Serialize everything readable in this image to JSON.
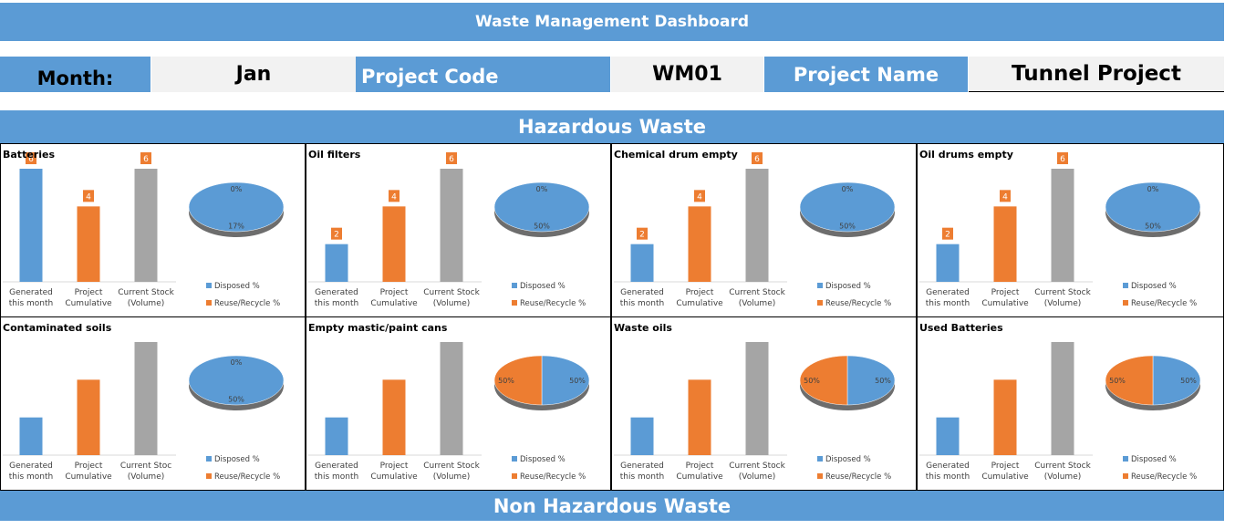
{
  "header": {
    "title": "Waste Management Dashboard",
    "month_label": "Month:",
    "month": "Jan",
    "project_code_label": "Project Code",
    "project_code": "WM01",
    "project_name_label": "Project Name",
    "project_name": "Tunnel Project"
  },
  "sections": [
    "Hazardous Waste",
    "Non Hazardous Waste"
  ],
  "chart_data": [
    {
      "type": "bar",
      "title": "Batteries",
      "categories": [
        "Generated this month",
        "Project Cumulative",
        "Current Stock (Volume)"
      ],
      "values": [
        6,
        4,
        6
      ],
      "colors": [
        "#5b9bd5",
        "#ed7d31",
        "#a5a5a5"
      ],
      "show_value_labels": true
    },
    {
      "type": "pie",
      "categories": [
        "Disposed %",
        "Reuse/Recycle %"
      ],
      "values": [
        17,
        0
      ],
      "value_labels": [
        "17%",
        "0%"
      ],
      "colors": [
        "#5b9bd5",
        "#ed7d31"
      ],
      "legend": "bottom"
    },
    {
      "type": "bar",
      "title": "Oil filters",
      "categories": [
        "Generated this month",
        "Project Cumulative",
        "Current Stock (Volume)"
      ],
      "values": [
        2,
        4,
        6
      ],
      "colors": [
        "#5b9bd5",
        "#ed7d31",
        "#a5a5a5"
      ],
      "show_value_labels": true
    },
    {
      "type": "pie",
      "categories": [
        "Disposed %",
        "Reuse/Recycle %"
      ],
      "values": [
        50,
        0
      ],
      "value_labels": [
        "50%",
        "0%"
      ],
      "colors": [
        "#5b9bd5",
        "#ed7d31"
      ],
      "legend": "bottom"
    },
    {
      "type": "bar",
      "title": "Chemical drum empty",
      "categories": [
        "Generated this month",
        "Project Cumulative",
        "Current Stock (Volume)"
      ],
      "values": [
        2,
        4,
        6
      ],
      "colors": [
        "#5b9bd5",
        "#ed7d31",
        "#a5a5a5"
      ],
      "show_value_labels": true
    },
    {
      "type": "pie",
      "categories": [
        "Disposed %",
        "Reuse/Recycle %"
      ],
      "values": [
        50,
        0
      ],
      "value_labels": [
        "50%",
        "0%"
      ],
      "colors": [
        "#5b9bd5",
        "#ed7d31"
      ],
      "legend": "bottom"
    },
    {
      "type": "bar",
      "title": "Oil drums empty",
      "categories": [
        "Generated this month",
        "Project Cumulative",
        "Current Stock (Volume)"
      ],
      "values": [
        2,
        4,
        6
      ],
      "colors": [
        "#5b9bd5",
        "#ed7d31",
        "#a5a5a5"
      ],
      "show_value_labels": true
    },
    {
      "type": "pie",
      "categories": [
        "Disposed %",
        "Reuse/Recycle %"
      ],
      "values": [
        50,
        0
      ],
      "value_labels": [
        "50%",
        "0%"
      ],
      "colors": [
        "#5b9bd5",
        "#ed7d31"
      ],
      "legend": "bottom"
    },
    {
      "type": "bar",
      "title": "Contaminated soils",
      "categories": [
        "Generated this month",
        "Project Cumulative",
        "Current Stoc (Volume)"
      ],
      "values": [
        2,
        4,
        6
      ],
      "colors": [
        "#5b9bd5",
        "#ed7d31",
        "#a5a5a5"
      ],
      "show_value_labels": false
    },
    {
      "type": "pie",
      "categories": [
        "Disposed %",
        "Reuse/Recycle %"
      ],
      "values": [
        50,
        0
      ],
      "value_labels": [
        "50%",
        "0%"
      ],
      "colors": [
        "#5b9bd5",
        "#ed7d31"
      ],
      "legend": "bottom"
    },
    {
      "type": "bar",
      "title": "Empty mastic/paint cans",
      "categories": [
        "Generated this month",
        "Project Cumulative",
        "Current Stock (Volume)"
      ],
      "values": [
        2,
        4,
        6
      ],
      "colors": [
        "#5b9bd5",
        "#ed7d31",
        "#a5a5a5"
      ],
      "show_value_labels": false
    },
    {
      "type": "pie",
      "categories": [
        "Disposed %",
        "Reuse/Recycle %"
      ],
      "values": [
        50,
        50
      ],
      "value_labels": [
        "50%",
        "50%"
      ],
      "colors": [
        "#5b9bd5",
        "#ed7d31"
      ],
      "legend": "bottom"
    },
    {
      "type": "bar",
      "title": "Waste oils",
      "categories": [
        "Generated this month",
        "Project Cumulative",
        "Current Stock (Volume)"
      ],
      "values": [
        2,
        4,
        6
      ],
      "colors": [
        "#5b9bd5",
        "#ed7d31",
        "#a5a5a5"
      ],
      "show_value_labels": false
    },
    {
      "type": "pie",
      "categories": [
        "Disposed %",
        "Reuse/Recycle %"
      ],
      "values": [
        50,
        50
      ],
      "value_labels": [
        "50%",
        "50%"
      ],
      "colors": [
        "#5b9bd5",
        "#ed7d31"
      ],
      "legend": "bottom"
    },
    {
      "type": "bar",
      "title": "Used Batteries",
      "categories": [
        "Generated this month",
        "Project Cumulative",
        "Current Stock (Volume)"
      ],
      "values": [
        2,
        4,
        6
      ],
      "colors": [
        "#5b9bd5",
        "#ed7d31",
        "#a5a5a5"
      ],
      "show_value_labels": false
    },
    {
      "type": "pie",
      "categories": [
        "Disposed %",
        "Reuse/Recycle %"
      ],
      "values": [
        50,
        50
      ],
      "value_labels": [
        "50%",
        "50%"
      ],
      "colors": [
        "#5b9bd5",
        "#ed7d31"
      ],
      "legend": "bottom"
    }
  ]
}
